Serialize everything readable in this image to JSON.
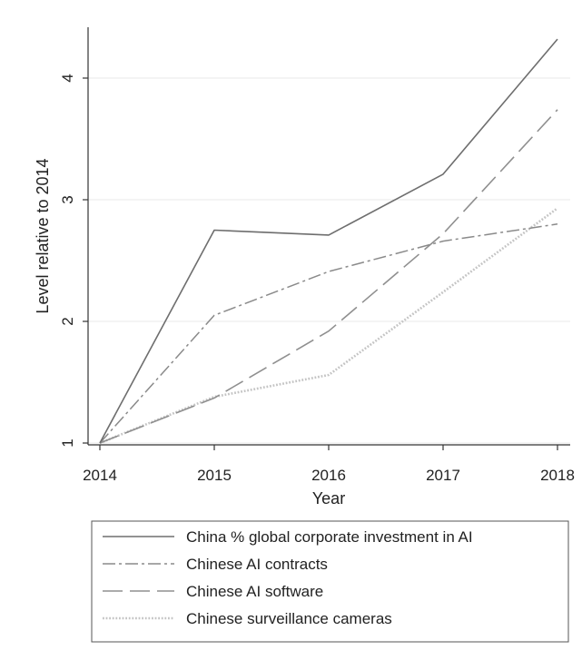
{
  "chart_data": {
    "type": "line",
    "title": "",
    "xlabel": "Year",
    "ylabel": "Level relative to 2014",
    "x": [
      2014,
      2015,
      2016,
      2017,
      2018
    ],
    "xlim": [
      2014,
      2018
    ],
    "ylim": [
      1,
      4.5
    ],
    "yticks": [
      1,
      2,
      3,
      4
    ],
    "xticks": [
      2014,
      2015,
      2016,
      2017,
      2018
    ],
    "grid": true,
    "legend_position": "bottom",
    "series": [
      {
        "name": "China % global corporate investment in AI",
        "style": "solid",
        "color": "#6e6e6e",
        "values": [
          1.0,
          2.75,
          2.71,
          3.21,
          4.32
        ]
      },
      {
        "name": "Chinese AI contracts",
        "style": "dash-dot",
        "color": "#8a8a8a",
        "values": [
          1.0,
          2.05,
          2.41,
          2.66,
          2.8
        ]
      },
      {
        "name": "Chinese AI software",
        "style": "long-dash",
        "color": "#8f8f8f",
        "values": [
          1.0,
          1.37,
          1.92,
          2.72,
          3.74
        ]
      },
      {
        "name": "Chinese surveillance cameras",
        "style": "dotted",
        "color": "#c4c4c4",
        "values": [
          1.0,
          1.38,
          1.56,
          2.24,
          2.93
        ]
      }
    ]
  }
}
